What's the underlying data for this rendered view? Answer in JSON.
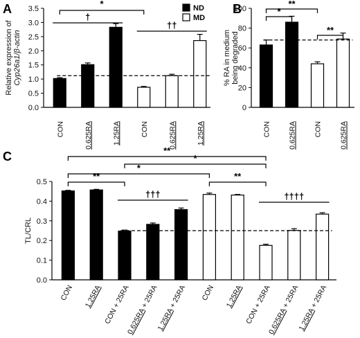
{
  "chart_data": [
    {
      "panel": "A",
      "type": "bar",
      "ylabel": "Relative expression of Cyp26a1/β-actin",
      "ylabel_line1": "Relative expression of",
      "ylabel_line2": "Cyp26a1/β-actin",
      "ylim": [
        0,
        3.5
      ],
      "yticks": [
        "0.0",
        "0.5",
        "1.0",
        "1.5",
        "2.0",
        "2.5",
        "3.0",
        "3.5"
      ],
      "categories": [
        "CON",
        "0.625RA",
        "1.25RA",
        "CON",
        "0.625RA",
        "1.25RA"
      ],
      "underlined": [
        false,
        true,
        true,
        false,
        true,
        true
      ],
      "groups": [
        "ND",
        "ND",
        "ND",
        "MD",
        "MD",
        "MD"
      ],
      "values": [
        1.02,
        1.51,
        2.83,
        0.71,
        1.12,
        2.36
      ],
      "errors": [
        0.03,
        0.06,
        0.13,
        0.03,
        0.05,
        0.22
      ],
      "reference_line": 1.12,
      "legend": [
        {
          "name": "ND",
          "fill": "#000000"
        },
        {
          "name": "MD",
          "fill": "#ffffff"
        }
      ],
      "annotations": [
        {
          "label": "*",
          "from": 0,
          "to": 3
        },
        {
          "label": "†",
          "from": 0,
          "to": 2
        },
        {
          "label": "††",
          "from": 3,
          "to": 5
        }
      ]
    },
    {
      "panel": "B",
      "type": "bar",
      "ylabel": "% RA in medium being degraded",
      "ylabel_line1": "% RA in medium",
      "ylabel_line2": "being degraded",
      "ylim": [
        0,
        100
      ],
      "yticks": [
        "0",
        "20",
        "40",
        "60",
        "80",
        "100"
      ],
      "categories": [
        "CON",
        "0.625RA",
        "CON",
        "0.625RA"
      ],
      "underlined": [
        false,
        true,
        false,
        true
      ],
      "groups": [
        "ND",
        "ND",
        "MD",
        "MD"
      ],
      "values": [
        63,
        86,
        44,
        69
      ],
      "errors": [
        5,
        6,
        2,
        6
      ],
      "reference_line": 68,
      "annotations": [
        {
          "label": "**",
          "from": 0,
          "to": 2
        },
        {
          "label": "*",
          "from": 0,
          "to": 1
        },
        {
          "label": "**",
          "from": 2,
          "to": 3
        }
      ]
    },
    {
      "panel": "C",
      "type": "bar",
      "ylabel": "TL/CRL",
      "ylim": [
        0,
        0.5
      ],
      "yticks": [
        "0.0",
        "0.1",
        "0.2",
        "0.3",
        "0.4",
        "0.5"
      ],
      "categories": [
        "CON",
        "1.25RA",
        "CON + 25RA",
        "0.625RA + 25RA",
        "1.25RA + 25RA",
        "CON",
        "1.25RA",
        "CON + 25RA",
        "0.625RA + 25RA",
        "1.25RA + 25RA"
      ],
      "cat_underlined_part": [
        "",
        "1.25RA",
        "",
        "0.625RA",
        "1.25RA",
        "",
        "1.25RA",
        "",
        "0.625RA",
        "1.25RA"
      ],
      "cat_rest": [
        "CON",
        "",
        "CON + 25RA",
        " + 25RA",
        " + 25RA",
        "CON",
        "",
        "CON + 25RA",
        " + 25RA",
        " + 25RA"
      ],
      "groups": [
        "ND",
        "ND",
        "ND",
        "ND",
        "ND",
        "MD",
        "MD",
        "MD",
        "MD",
        "MD"
      ],
      "values": [
        0.452,
        0.457,
        0.248,
        0.282,
        0.357,
        0.434,
        0.431,
        0.175,
        0.251,
        0.334
      ],
      "errors": [
        0.003,
        0.003,
        0.005,
        0.007,
        0.008,
        0.007,
        0.003,
        0.006,
        0.009,
        0.007
      ],
      "reference_line": 0.25,
      "annotations": [
        {
          "label": "**",
          "from": 0,
          "to": 7
        },
        {
          "label": "*",
          "from": 2,
          "to": 7
        },
        {
          "label": "*",
          "from": 0,
          "to": 5
        },
        {
          "label": "**",
          "from": 0,
          "to": 2
        },
        {
          "label": "**",
          "from": 5,
          "to": 7
        },
        {
          "label": "†††",
          "from": 2,
          "to": 4
        },
        {
          "label": "††††",
          "from": 7,
          "to": 9
        }
      ]
    }
  ]
}
